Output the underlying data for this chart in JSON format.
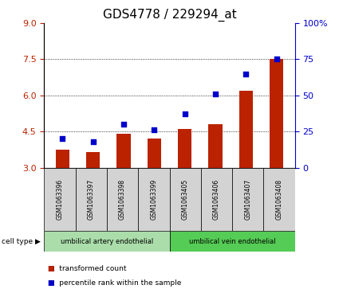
{
  "title": "GDS4778 / 229294_at",
  "samples": [
    "GSM1063396",
    "GSM1063397",
    "GSM1063398",
    "GSM1063399",
    "GSM1063405",
    "GSM1063406",
    "GSM1063407",
    "GSM1063408"
  ],
  "bar_values": [
    3.75,
    3.65,
    4.4,
    4.2,
    4.6,
    4.8,
    6.2,
    7.5
  ],
  "percentile_values": [
    20,
    18,
    30,
    26,
    37,
    51,
    65,
    75
  ],
  "bar_color": "#bb2200",
  "dot_color": "#0000cc",
  "ylim_left": [
    3,
    9
  ],
  "ylim_right": [
    0,
    100
  ],
  "yticks_left": [
    3,
    4.5,
    6,
    7.5,
    9
  ],
  "yticks_right": [
    0,
    25,
    50,
    75,
    100
  ],
  "ytick_labels_right": [
    "0",
    "25",
    "50",
    "75",
    "100%"
  ],
  "cell_types": [
    {
      "label": "umbilical artery endothelial",
      "start": 0,
      "end": 4,
      "color": "#aaddaa"
    },
    {
      "label": "umbilical vein endothelial",
      "start": 4,
      "end": 8,
      "color": "#55cc55"
    }
  ],
  "legend_bar_label": "transformed count",
  "legend_dot_label": "percentile rank within the sample",
  "cell_type_label": "cell type",
  "plot_bg": "#ffffff",
  "gridlines": [
    4.5,
    6.0,
    7.5
  ],
  "title_fontsize": 11,
  "tick_fontsize": 8,
  "sample_box_color": "#d3d3d3"
}
